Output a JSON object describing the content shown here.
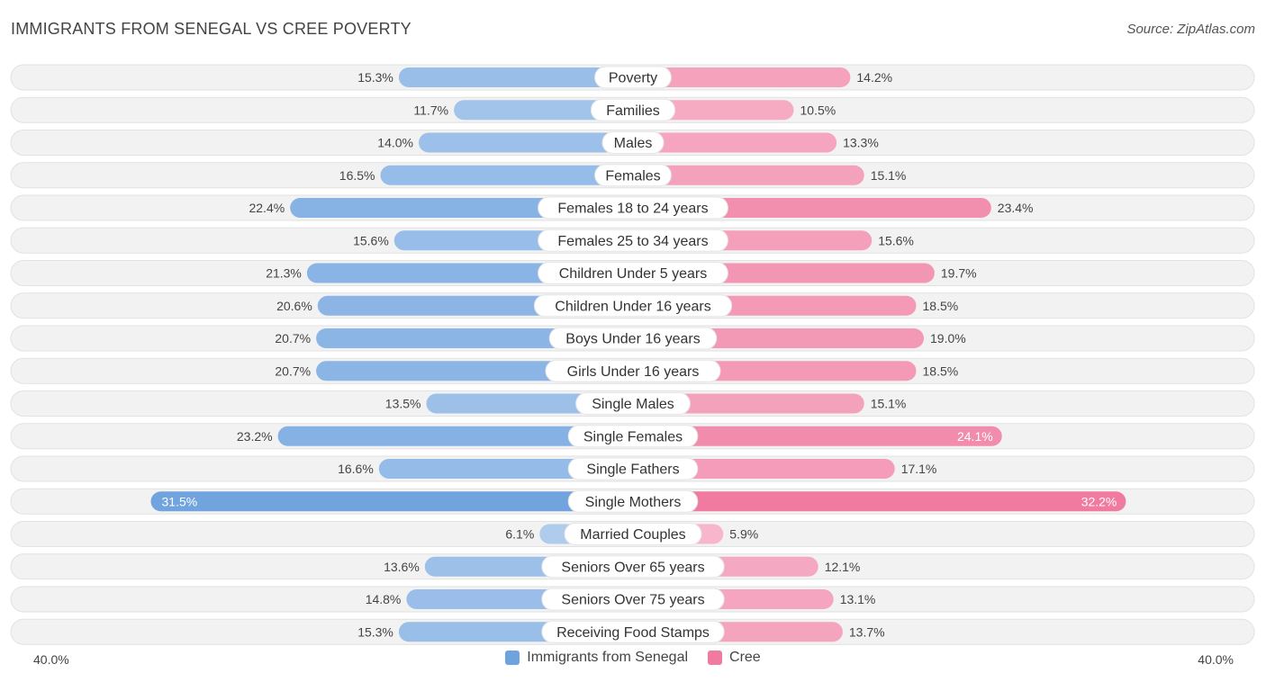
{
  "header": {
    "title": "IMMIGRANTS FROM SENEGAL VS CREE POVERTY",
    "source": "Source: ZipAtlas.com"
  },
  "axis": {
    "left_label": "40.0%",
    "right_label": "40.0%"
  },
  "legend": {
    "series_a": "Immigrants from Senegal",
    "series_b": "Cree"
  },
  "colors": {
    "series_a": "#6fa3df",
    "series_b": "#f07aa0",
    "track": "#efefef"
  },
  "chart_data": {
    "type": "bar",
    "orientation": "horizontal-diverging",
    "xlim": [
      0,
      40
    ],
    "unit": "%",
    "categories": [
      "Poverty",
      "Families",
      "Males",
      "Females",
      "Females 18 to 24 years",
      "Females 25 to 34 years",
      "Children Under 5 years",
      "Children Under 16 years",
      "Boys Under 16 years",
      "Girls Under 16 years",
      "Single Males",
      "Single Females",
      "Single Fathers",
      "Single Mothers",
      "Married Couples",
      "Seniors Over 65 years",
      "Seniors Over 75 years",
      "Receiving Food Stamps"
    ],
    "series": [
      {
        "name": "Immigrants from Senegal",
        "values": [
          15.3,
          11.7,
          14.0,
          16.5,
          22.4,
          15.6,
          21.3,
          20.6,
          20.7,
          20.7,
          13.5,
          23.2,
          16.6,
          31.5,
          6.1,
          13.6,
          14.8,
          15.3
        ],
        "labels": [
          "15.3%",
          "11.7%",
          "14.0%",
          "16.5%",
          "22.4%",
          "15.6%",
          "21.3%",
          "20.6%",
          "20.7%",
          "20.7%",
          "13.5%",
          "23.2%",
          "16.6%",
          "31.5%",
          "6.1%",
          "13.6%",
          "14.8%",
          "15.3%"
        ]
      },
      {
        "name": "Cree",
        "values": [
          14.2,
          10.5,
          13.3,
          15.1,
          23.4,
          15.6,
          19.7,
          18.5,
          19.0,
          18.5,
          15.1,
          24.1,
          17.1,
          32.2,
          5.9,
          12.1,
          13.1,
          13.7
        ],
        "labels": [
          "14.2%",
          "10.5%",
          "13.3%",
          "15.1%",
          "23.4%",
          "15.6%",
          "19.7%",
          "18.5%",
          "19.0%",
          "18.5%",
          "15.1%",
          "24.1%",
          "17.1%",
          "32.2%",
          "5.9%",
          "12.1%",
          "13.1%",
          "13.7%"
        ]
      }
    ]
  }
}
